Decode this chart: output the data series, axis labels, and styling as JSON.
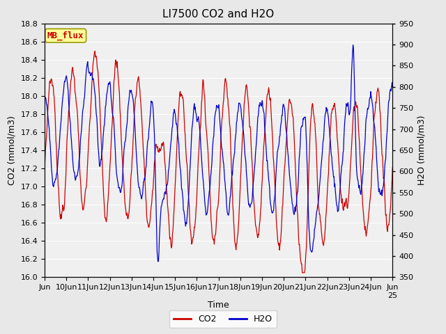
{
  "title": "LI7500 CO2 and H2O",
  "xlabel": "Time",
  "ylabel_left": "CO2 (mmol/m3)",
  "ylabel_right": "H2O (mmol/m3)",
  "ylim_left": [
    16.0,
    18.8
  ],
  "ylim_right": [
    350,
    950
  ],
  "yticks_left": [
    16.0,
    16.2,
    16.4,
    16.6,
    16.8,
    17.0,
    17.2,
    17.4,
    17.6,
    17.8,
    18.0,
    18.2,
    18.4,
    18.6,
    18.8
  ],
  "yticks_right": [
    350,
    400,
    450,
    500,
    550,
    600,
    650,
    700,
    750,
    800,
    850,
    900,
    950
  ],
  "co2_color": "#cc0000",
  "h2o_color": "#0000cc",
  "bg_color": "#e8e8e8",
  "plot_bg_color": "#f0f0f0",
  "annotation_text": "MB_flux",
  "annotation_bg": "#ffff99",
  "annotation_border": "#888800",
  "legend_co2": "CO2",
  "legend_h2o": "H2O",
  "grid_color": "#ffffff",
  "title_fontsize": 11,
  "axis_fontsize": 9,
  "tick_fontsize": 8,
  "n_days": 16,
  "pts_per_day": 48
}
